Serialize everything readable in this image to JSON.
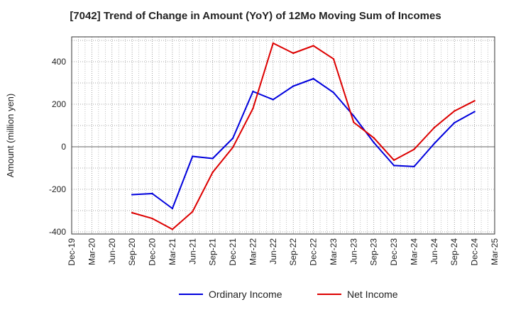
{
  "chart_data": {
    "type": "line",
    "title": "[7042]  Trend of Change in Amount (YoY) of 12Mo Moving Sum of Incomes",
    "xlabel": "",
    "ylabel": "Amount (million yen)",
    "ylim": [
      -400,
      500
    ],
    "yticks": [
      -400,
      -200,
      0,
      200,
      400
    ],
    "ytick_labels": [
      "-400",
      "-200",
      "0",
      "200",
      "400"
    ],
    "categories": [
      "Dec-19",
      "Mar-20",
      "Jun-20",
      "Sep-20",
      "Dec-20",
      "Mar-21",
      "Jun-21",
      "Sep-21",
      "Dec-21",
      "Mar-22",
      "Jun-22",
      "Sep-22",
      "Dec-22",
      "Mar-23",
      "Jun-23",
      "Sep-23",
      "Dec-23",
      "Mar-24",
      "Jun-24",
      "Sep-24",
      "Dec-24",
      "Mar-25"
    ],
    "grid": true,
    "legend_position": "bottom-center",
    "series": [
      {
        "name": "Ordinary Income",
        "color": "#0000dd",
        "values": [
          null,
          null,
          null,
          -225,
          -220,
          -290,
          -45,
          -55,
          40,
          260,
          222,
          285,
          320,
          255,
          145,
          20,
          -88,
          -93,
          15,
          113,
          165,
          null
        ]
      },
      {
        "name": "Net Income",
        "color": "#dd0000",
        "values": [
          null,
          null,
          null,
          -310,
          -337,
          -388,
          -305,
          -120,
          -3,
          180,
          487,
          440,
          475,
          413,
          115,
          42,
          -63,
          -12,
          90,
          168,
          216,
          null
        ]
      }
    ]
  }
}
